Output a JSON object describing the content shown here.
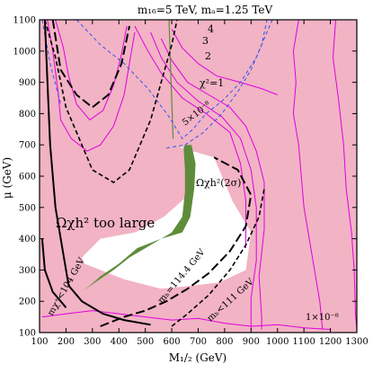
{
  "chart_data": {
    "type": "contour",
    "title": "m₁₆=5 TeV, mₐ=1.25 TeV",
    "xlabel": "M₁/₂ (GeV)",
    "ylabel": "μ (GeV)",
    "xlim": [
      100,
      1300
    ],
    "ylim": [
      100,
      1100
    ],
    "xticks": [
      100,
      200,
      300,
      400,
      500,
      600,
      700,
      800,
      900,
      1000,
      1100,
      1200,
      1300
    ],
    "yticks": [
      100,
      200,
      300,
      400,
      500,
      600,
      700,
      800,
      900,
      1000,
      1100
    ],
    "colors": {
      "background": "#f2b3c4",
      "allowed_region": "#ffffff",
      "relic_band": "#5e8c3a",
      "chi2_contours": "#e000e0",
      "dashed_blue": "#3355ee",
      "bound_lines": "#000000",
      "green_line": "#5e8c3a"
    },
    "regions": {
      "white_region": [
        [
          620,
          700
        ],
        [
          680,
          680
        ],
        [
          760,
          660
        ],
        [
          830,
          520
        ],
        [
          900,
          420
        ],
        [
          880,
          300
        ],
        [
          780,
          260
        ],
        [
          680,
          250
        ],
        [
          560,
          240
        ],
        [
          420,
          270
        ],
        [
          330,
          300
        ],
        [
          270,
          320
        ],
        [
          260,
          340
        ],
        [
          330,
          400
        ],
        [
          460,
          420
        ],
        [
          570,
          470
        ],
        [
          650,
          530
        ],
        [
          670,
          600
        ],
        [
          660,
          680
        ]
      ],
      "green_band": [
        [
          650,
          700
        ],
        [
          675,
          700
        ],
        [
          690,
          640
        ],
        [
          685,
          560
        ],
        [
          670,
          470
        ],
        [
          640,
          420
        ],
        [
          560,
          400
        ],
        [
          470,
          370
        ],
        [
          400,
          320
        ],
        [
          330,
          280
        ],
        [
          290,
          250
        ],
        [
          260,
          230
        ],
        [
          310,
          260
        ],
        [
          380,
          300
        ],
        [
          440,
          340
        ],
        [
          520,
          380
        ],
        [
          600,
          420
        ],
        [
          640,
          470
        ],
        [
          650,
          550
        ],
        [
          650,
          620
        ],
        [
          645,
          690
        ]
      ]
    },
    "curves": {
      "chi2_1": [
        [
          600,
          1070
        ],
        [
          640,
          1010
        ],
        [
          700,
          960
        ],
        [
          770,
          920
        ],
        [
          860,
          900
        ],
        [
          940,
          880
        ],
        [
          1000,
          860
        ]
      ],
      "chi2_2": [
        [
          560,
          1040
        ],
        [
          600,
          970
        ],
        [
          660,
          900
        ],
        [
          740,
          860
        ],
        [
          820,
          820
        ],
        [
          880,
          760
        ],
        [
          920,
          680
        ],
        [
          950,
          580
        ],
        [
          950,
          430
        ],
        [
          930,
          280
        ],
        [
          940,
          150
        ],
        [
          940,
          110
        ]
      ],
      "chi2_3": [
        [
          520,
          1060
        ],
        [
          560,
          980
        ],
        [
          620,
          900
        ],
        [
          700,
          840
        ],
        [
          790,
          790
        ],
        [
          860,
          720
        ],
        [
          900,
          620
        ],
        [
          920,
          500
        ],
        [
          920,
          330
        ],
        [
          900,
          210
        ],
        [
          900,
          110
        ]
      ],
      "chi2_4": [
        [
          460,
          1080
        ],
        [
          510,
          1000
        ],
        [
          560,
          930
        ],
        [
          640,
          850
        ],
        [
          730,
          800
        ],
        [
          820,
          740
        ],
        [
          860,
          640
        ],
        [
          880,
          520
        ],
        [
          880,
          370
        ]
      ],
      "chi2_outer": [
        [
          1080,
          1100
        ],
        [
          1060,
          1000
        ],
        [
          1070,
          900
        ],
        [
          1060,
          800
        ],
        [
          1080,
          700
        ],
        [
          1090,
          600
        ],
        [
          1100,
          500
        ],
        [
          1120,
          400
        ],
        [
          1140,
          300
        ],
        [
          1160,
          200
        ],
        [
          1170,
          110
        ]
      ],
      "chi2_outer2": [
        [
          1220,
          1100
        ],
        [
          1210,
          980
        ],
        [
          1230,
          850
        ],
        [
          1250,
          700
        ],
        [
          1260,
          560
        ],
        [
          1280,
          420
        ],
        [
          1290,
          300
        ],
        [
          1295,
          160
        ],
        [
          1300,
          110
        ]
      ],
      "chi2_left1": [
        [
          130,
          1100
        ],
        [
          150,
          1000
        ],
        [
          170,
          870
        ],
        [
          180,
          780
        ],
        [
          220,
          720
        ],
        [
          280,
          680
        ],
        [
          330,
          700
        ],
        [
          380,
          760
        ],
        [
          420,
          860
        ],
        [
          440,
          960
        ],
        [
          460,
          1060
        ]
      ],
      "chi2_left2": [
        [
          160,
          1100
        ],
        [
          190,
          1010
        ],
        [
          210,
          920
        ],
        [
          240,
          830
        ],
        [
          290,
          780
        ],
        [
          340,
          810
        ],
        [
          380,
          890
        ],
        [
          410,
          990
        ],
        [
          430,
          1080
        ]
      ],
      "chi2_bottom": [
        [
          110,
          150
        ],
        [
          200,
          160
        ],
        [
          300,
          170
        ],
        [
          400,
          160
        ],
        [
          500,
          150
        ],
        [
          600,
          140
        ],
        [
          700,
          145
        ],
        [
          800,
          130
        ],
        [
          900,
          120
        ],
        [
          1000,
          125
        ],
        [
          1100,
          115
        ],
        [
          1200,
          110
        ]
      ],
      "dash_blue_1": [
        [
          240,
          1100
        ],
        [
          330,
          1020
        ],
        [
          420,
          960
        ],
        [
          510,
          880
        ],
        [
          590,
          790
        ],
        [
          640,
          720
        ],
        [
          680,
          750
        ],
        [
          730,
          800
        ],
        [
          790,
          840
        ],
        [
          860,
          900
        ],
        [
          920,
          980
        ],
        [
          960,
          1060
        ],
        [
          980,
          1100
        ]
      ],
      "dash_blue_2": [
        [
          580,
          690
        ],
        [
          650,
          700
        ],
        [
          720,
          740
        ],
        [
          790,
          800
        ],
        [
          850,
          870
        ],
        [
          900,
          940
        ],
        [
          940,
          1020
        ],
        [
          960,
          1100
        ]
      ],
      "dash_blue_3": [
        [
          110,
          1100
        ],
        [
          140,
          960
        ],
        [
          180,
          830
        ]
      ],
      "mh_114_4": [
        [
          150,
          1100
        ],
        [
          180,
          940
        ],
        [
          240,
          860
        ],
        [
          300,
          820
        ],
        [
          360,
          860
        ],
        [
          410,
          960
        ],
        [
          440,
          1080
        ]
      ],
      "mh_114_4_lower": [
        [
          330,
          120
        ],
        [
          420,
          150
        ],
        [
          500,
          170
        ],
        [
          580,
          200
        ],
        [
          660,
          240
        ],
        [
          740,
          290
        ],
        [
          820,
          360
        ],
        [
          880,
          440
        ],
        [
          900,
          540
        ],
        [
          850,
          620
        ],
        [
          760,
          660
        ]
      ],
      "mh_111": [
        [
          120,
          1100
        ],
        [
          160,
          980
        ],
        [
          200,
          820
        ],
        [
          260,
          700
        ],
        [
          300,
          620
        ],
        [
          380,
          580
        ],
        [
          440,
          620
        ],
        [
          480,
          700
        ],
        [
          520,
          780
        ],
        [
          560,
          900
        ],
        [
          600,
          1020
        ],
        [
          620,
          1100
        ]
      ],
      "mh_111_lower": [
        [
          600,
          120
        ],
        [
          660,
          160
        ],
        [
          740,
          220
        ],
        [
          820,
          300
        ],
        [
          880,
          380
        ],
        [
          930,
          470
        ],
        [
          950,
          560
        ]
      ],
      "chargino": [
        [
          120,
          1100
        ],
        [
          130,
          900
        ],
        [
          140,
          700
        ],
        [
          160,
          500
        ],
        [
          190,
          350
        ],
        [
          210,
          250
        ],
        [
          260,
          200
        ],
        [
          340,
          160
        ],
        [
          420,
          140
        ],
        [
          520,
          125
        ]
      ],
      "chargino_lower": [
        [
          110,
          400
        ],
        [
          120,
          300
        ],
        [
          150,
          230
        ],
        [
          200,
          180
        ]
      ],
      "green_vertical": [
        [
          590,
          1100
        ],
        [
          595,
          960
        ],
        [
          600,
          840
        ],
        [
          605,
          720
        ]
      ]
    },
    "annotations": {
      "label_4": "4",
      "label_3": "3",
      "label_2": "2",
      "label_chi1": "χ²=1",
      "label_5e8": "5×10⁻⁸",
      "label_omega_2sigma": "Ωχh²(2σ)",
      "label_omega_large": "Ωχh² too large",
      "label_mh_114": "mₕ=114.4 GeV",
      "label_mh_111": "mₕ<111 GeV",
      "label_mchi": "mχ⁺<104 GeV",
      "label_1e8": "1×10⁻⁸"
    }
  }
}
